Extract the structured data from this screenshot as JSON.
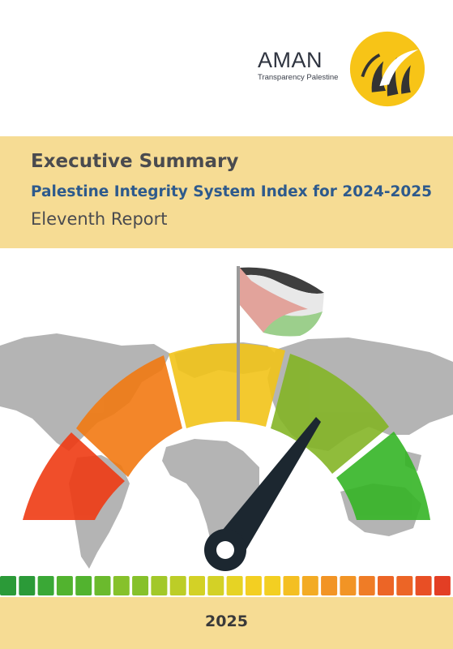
{
  "logo": {
    "name": "AMAN",
    "tagline": "Transparency Palestine"
  },
  "report": {
    "heading": "Executive Summary",
    "subtitle": "Palestine Integrity System Index for 2024-2025",
    "edition": "Eleventh Report",
    "year": "2025"
  },
  "gauge": {
    "segment_colors": [
      "#ef3b14",
      "#f27a12",
      "#f2c419",
      "#84b526",
      "#35b526"
    ],
    "needle_color": "#1c2730",
    "needle_level": 0.76
  },
  "color_strip": [
    "#2b9a38",
    "#3aa836",
    "#52b32f",
    "#6bba2d",
    "#86c12b",
    "#a2c829",
    "#bccd27",
    "#d3d126",
    "#e6d324",
    "#f3cf22",
    "#f4bf22",
    "#f3ab24",
    "#f29425",
    "#ef7c26",
    "#ec6526",
    "#e84f25",
    "#e33e24"
  ],
  "flag_colors": {
    "black": "#3f3f3f",
    "white": "#e8e8e8",
    "green": "#9ccf8c",
    "red": "#e2a39b"
  }
}
